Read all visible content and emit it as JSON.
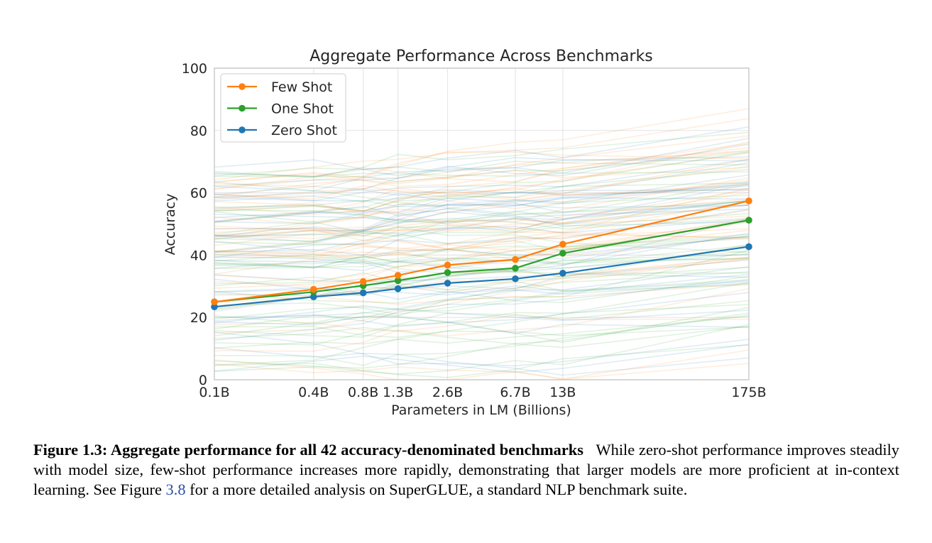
{
  "chart_data": {
    "type": "line",
    "title": "Aggregate Performance Across Benchmarks",
    "xlabel": "Parameters in LM (Billions)",
    "ylabel": "Accuracy",
    "x_scale": "log",
    "x_values": [
      0.1,
      0.4,
      0.8,
      1.3,
      2.6,
      6.7,
      13,
      175
    ],
    "categories": [
      "0.1B",
      "0.4B",
      "0.8B",
      "1.3B",
      "2.6B",
      "6.7B",
      "13B",
      "175B"
    ],
    "yticks": [
      "0",
      "20",
      "40",
      "60",
      "80",
      "100"
    ],
    "ylim": [
      0,
      100
    ],
    "grid": true,
    "legend_position": "top-left",
    "series": [
      {
        "name": "Few Shot",
        "color": "#ff7f0e",
        "values": [
          25.0,
          29.0,
          31.5,
          33.5,
          36.8,
          38.6,
          43.5,
          57.4
        ]
      },
      {
        "name": "One Shot",
        "color": "#2ca02c",
        "values": [
          25.0,
          28.2,
          30.2,
          31.8,
          34.4,
          35.8,
          40.6,
          51.2
        ]
      },
      {
        "name": "Zero Shot",
        "color": "#1f77b4",
        "values": [
          23.4,
          26.6,
          27.9,
          29.2,
          31.0,
          32.4,
          34.2,
          42.7
        ]
      }
    ],
    "background_lines": "faint per-benchmark curves (42 benchmarks, 3 settings each)"
  },
  "caption": {
    "label": "Figure 1.3: Aggregate performance for all 42 accuracy-denominated benchmarks",
    "text_before_link": "While zero-shot performance improves steadily with model size, few-shot performance increases more rapidly, demonstrating that larger models are more proficient at in-context learning. See Figure ",
    "link": "3.8",
    "text_after_link": " for a more detailed analysis on SuperGLUE, a standard NLP benchmark suite."
  }
}
